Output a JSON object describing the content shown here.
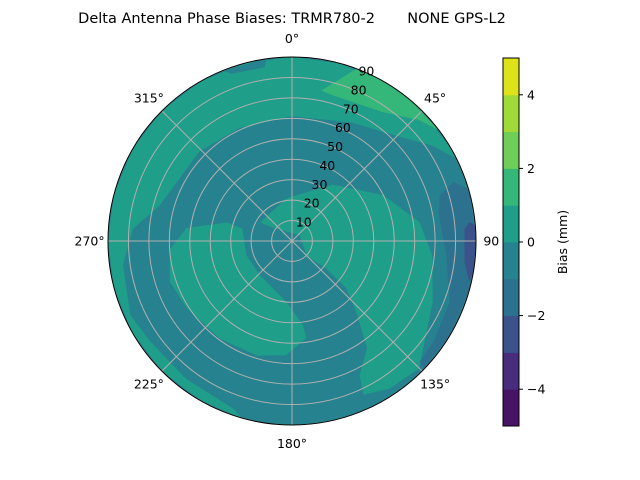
{
  "chart_data": {
    "type": "contour-polar",
    "title": "Delta Antenna Phase Biases: TRMR780-2       NONE GPS-L2",
    "theta_direction": "clockwise",
    "theta_zero": "north",
    "theta_ticks": [
      "0°",
      "45°",
      "90°",
      "135°",
      "180°",
      "225°",
      "270°",
      "315°"
    ],
    "theta_tick_values": [
      0,
      45,
      90,
      135,
      180,
      225,
      270,
      315
    ],
    "r_ticks": [
      "10",
      "20",
      "30",
      "40",
      "50",
      "60",
      "70",
      "80",
      "90"
    ],
    "r_tick_values": [
      10,
      20,
      30,
      40,
      50,
      60,
      70,
      80,
      90
    ],
    "rlim": [
      0,
      90
    ],
    "grid": true,
    "colorbar": {
      "label": "Bias (mm)",
      "levels": [
        -5,
        -4,
        -3,
        -2,
        -1,
        0,
        1,
        2,
        3,
        4,
        5
      ],
      "colors": [
        "#471365",
        "#472d7b",
        "#3b528b",
        "#2c728e",
        "#26828e",
        "#1f9e89",
        "#35b779",
        "#6ece58",
        "#a0da39",
        "#dde318"
      ],
      "ticks": [
        "−4",
        "−2",
        "0",
        "2",
        "4"
      ],
      "tick_values": [
        -4,
        -2,
        0,
        2,
        4
      ]
    },
    "background_level": [
      -1,
      0
    ],
    "regions": [
      {
        "level": [
          0,
          1
        ],
        "points": [
          [
            63.4,
            90
          ],
          [
            55.8,
            83
          ],
          [
            40.9,
            70
          ],
          [
            27,
            65
          ],
          [
            0,
            61
          ],
          [
            -25,
            61
          ],
          [
            -46,
            63
          ],
          [
            -75,
            67
          ],
          [
            -85.6,
            78
          ],
          [
            -98,
            83.5
          ],
          [
            -114.6,
            87
          ],
          [
            -125,
            85
          ],
          [
            -142.5,
            85
          ],
          [
            -161,
            87
          ],
          [
            -164,
            90
          ],
          [
            -150,
            90
          ],
          [
            -135,
            90
          ],
          [
            -120,
            90
          ],
          [
            -105,
            90
          ],
          [
            -90,
            90
          ],
          [
            -75,
            90
          ],
          [
            -60,
            90
          ],
          [
            -45,
            90
          ],
          [
            -30,
            90
          ],
          [
            -15,
            90
          ],
          [
            0,
            90
          ],
          [
            15,
            90
          ],
          [
            30,
            90
          ],
          [
            45,
            90
          ],
          [
            60,
            90
          ]
        ]
      },
      {
        "level": [
          0,
          1
        ],
        "points": [
          [
            -60,
            18
          ],
          [
            -7.6,
            21
          ],
          [
            35.6,
            34
          ],
          [
            63.3,
            50
          ],
          [
            81.5,
            63
          ],
          [
            95.8,
            69
          ],
          [
            113.4,
            75
          ],
          [
            135,
            88
          ],
          [
            146.5,
            86.6
          ],
          [
            155,
            83
          ],
          [
            153.3,
            73.5
          ],
          [
            145,
            64
          ],
          [
            137.8,
            47
          ],
          [
            131,
            35
          ],
          [
            129,
            21.5
          ],
          [
            135,
            10
          ],
          [
            53,
            4.7
          ],
          [
            -52,
            9.7
          ]
        ]
      },
      {
        "level": [
          0,
          1
        ],
        "points": [
          [
            266,
            60
          ],
          [
            277,
            52
          ],
          [
            286,
            33
          ],
          [
            284,
            25
          ],
          [
            253,
            23.4
          ],
          [
            223,
            23
          ],
          [
            185,
            30
          ],
          [
            172.6,
            41.6
          ],
          [
            171.6,
            48
          ],
          [
            183,
            56
          ],
          [
            197,
            58.6
          ],
          [
            216.5,
            59.4
          ],
          [
            237,
            61
          ],
          [
            251.5,
            63
          ]
        ]
      },
      {
        "level": [
          1,
          2
        ],
        "points": [
          [
            11,
            75
          ],
          [
            20.5,
            90
          ],
          [
            30,
            90
          ],
          [
            40,
            90
          ],
          [
            53,
            90
          ],
          [
            46.6,
            86
          ],
          [
            35,
            77
          ],
          [
            15.7,
            74
          ]
        ]
      },
      {
        "level": [
          -2,
          -1
        ],
        "points": [
          [
            72.8,
            75.6
          ],
          [
            69.9,
            84
          ],
          [
            73,
            89
          ],
          [
            75,
            90
          ],
          [
            90,
            90
          ],
          [
            105,
            90
          ],
          [
            120,
            90
          ],
          [
            134,
            90
          ],
          [
            133.5,
            86
          ],
          [
            125.6,
            85
          ],
          [
            111,
            82.7
          ],
          [
            95.3,
            75.8
          ],
          [
            80,
            73
          ]
        ]
      },
      {
        "level": [
          -3,
          -2
        ],
        "points": [
          [
            86,
            84.6
          ],
          [
            84,
            87.4
          ],
          [
            85,
            90
          ],
          [
            92,
            90
          ],
          [
            100,
            90
          ],
          [
            103,
            89
          ],
          [
            97,
            85
          ]
        ]
      },
      {
        "level": [
          -1,
          0
        ],
        "points": [
          [
            -20,
            87
          ],
          [
            -9,
            86
          ],
          [
            -8,
            90
          ],
          [
            -22,
            90
          ]
        ]
      }
    ]
  }
}
